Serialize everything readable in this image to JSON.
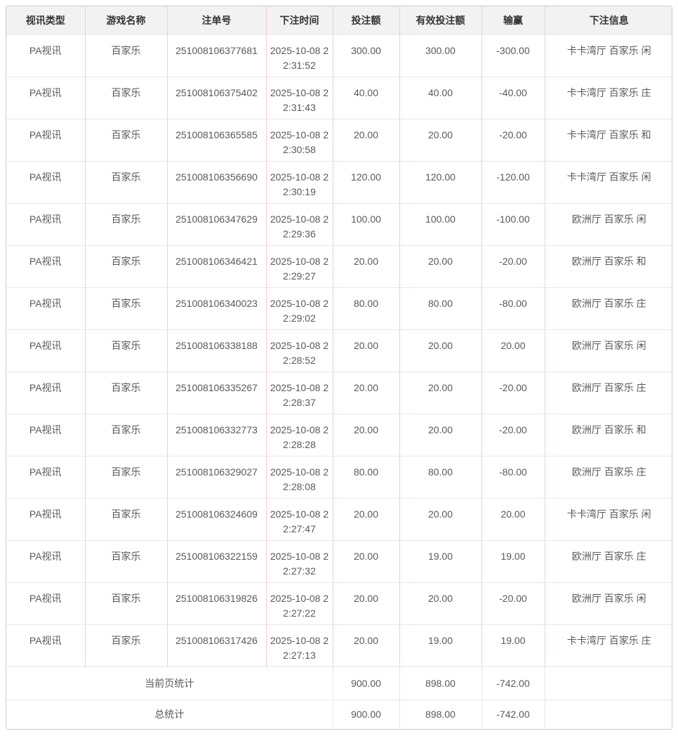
{
  "colors": {
    "header_bg": "#f2f2f2",
    "outer_border": "#cccccc",
    "vertical_border": "#eecfcf",
    "horizontal_border": "#e8e8e8",
    "header_text": "#333333",
    "cell_text": "#595959"
  },
  "table": {
    "columns": [
      "视讯类型",
      "游戏名称",
      "注单号",
      "下注时间",
      "投注额",
      "有效投注额",
      "输赢",
      "下注信息"
    ],
    "column_keys": [
      "video-type",
      "game-name",
      "bet-no",
      "bet-time",
      "bet-amount",
      "valid-bet-amount",
      "win-loss",
      "bet-info"
    ],
    "rows": [
      [
        "PA视讯",
        "百家乐",
        "251008106377681",
        "2025-10-08 22:31:52",
        "300.00",
        "300.00",
        "-300.00",
        "卡卡湾厅 百家乐 闲"
      ],
      [
        "PA视讯",
        "百家乐",
        "251008106375402",
        "2025-10-08 22:31:43",
        "40.00",
        "40.00",
        "-40.00",
        "卡卡湾厅 百家乐 庄"
      ],
      [
        "PA视讯",
        "百家乐",
        "251008106365585",
        "2025-10-08 22:30:58",
        "20.00",
        "20.00",
        "-20.00",
        "卡卡湾厅 百家乐 和"
      ],
      [
        "PA视讯",
        "百家乐",
        "251008106356690",
        "2025-10-08 22:30:19",
        "120.00",
        "120.00",
        "-120.00",
        "卡卡湾厅 百家乐 闲"
      ],
      [
        "PA视讯",
        "百家乐",
        "251008106347629",
        "2025-10-08 22:29:36",
        "100.00",
        "100.00",
        "-100.00",
        "欧洲厅 百家乐 闲"
      ],
      [
        "PA视讯",
        "百家乐",
        "251008106346421",
        "2025-10-08 22:29:27",
        "20.00",
        "20.00",
        "-20.00",
        "欧洲厅 百家乐 和"
      ],
      [
        "PA视讯",
        "百家乐",
        "251008106340023",
        "2025-10-08 22:29:02",
        "80.00",
        "80.00",
        "-80.00",
        "欧洲厅 百家乐 庄"
      ],
      [
        "PA视讯",
        "百家乐",
        "251008106338188",
        "2025-10-08 22:28:52",
        "20.00",
        "20.00",
        "20.00",
        "欧洲厅 百家乐 闲"
      ],
      [
        "PA视讯",
        "百家乐",
        "251008106335267",
        "2025-10-08 22:28:37",
        "20.00",
        "20.00",
        "-20.00",
        "欧洲厅 百家乐 庄"
      ],
      [
        "PA视讯",
        "百家乐",
        "251008106332773",
        "2025-10-08 22:28:28",
        "20.00",
        "20.00",
        "-20.00",
        "欧洲厅 百家乐 和"
      ],
      [
        "PA视讯",
        "百家乐",
        "251008106329027",
        "2025-10-08 22:28:08",
        "80.00",
        "80.00",
        "-80.00",
        "欧洲厅 百家乐 庄"
      ],
      [
        "PA视讯",
        "百家乐",
        "251008106324609",
        "2025-10-08 22:27:47",
        "20.00",
        "20.00",
        "20.00",
        "卡卡湾厅 百家乐 闲"
      ],
      [
        "PA视讯",
        "百家乐",
        "251008106322159",
        "2025-10-08 22:27:32",
        "20.00",
        "19.00",
        "19.00",
        "欧洲厅 百家乐 庄"
      ],
      [
        "PA视讯",
        "百家乐",
        "251008106319826",
        "2025-10-08 22:27:22",
        "20.00",
        "20.00",
        "-20.00",
        "欧洲厅 百家乐 闲"
      ],
      [
        "PA视讯",
        "百家乐",
        "251008106317426",
        "2025-10-08 22:27:13",
        "20.00",
        "19.00",
        "19.00",
        "卡卡湾厅 百家乐 庄"
      ]
    ],
    "footer_rows": [
      {
        "label": "当前页统计",
        "values": [
          "900.00",
          "898.00",
          "-742.00",
          ""
        ]
      },
      {
        "label": "总统计",
        "values": [
          "900.00",
          "898.00",
          "-742.00",
          ""
        ]
      }
    ]
  }
}
